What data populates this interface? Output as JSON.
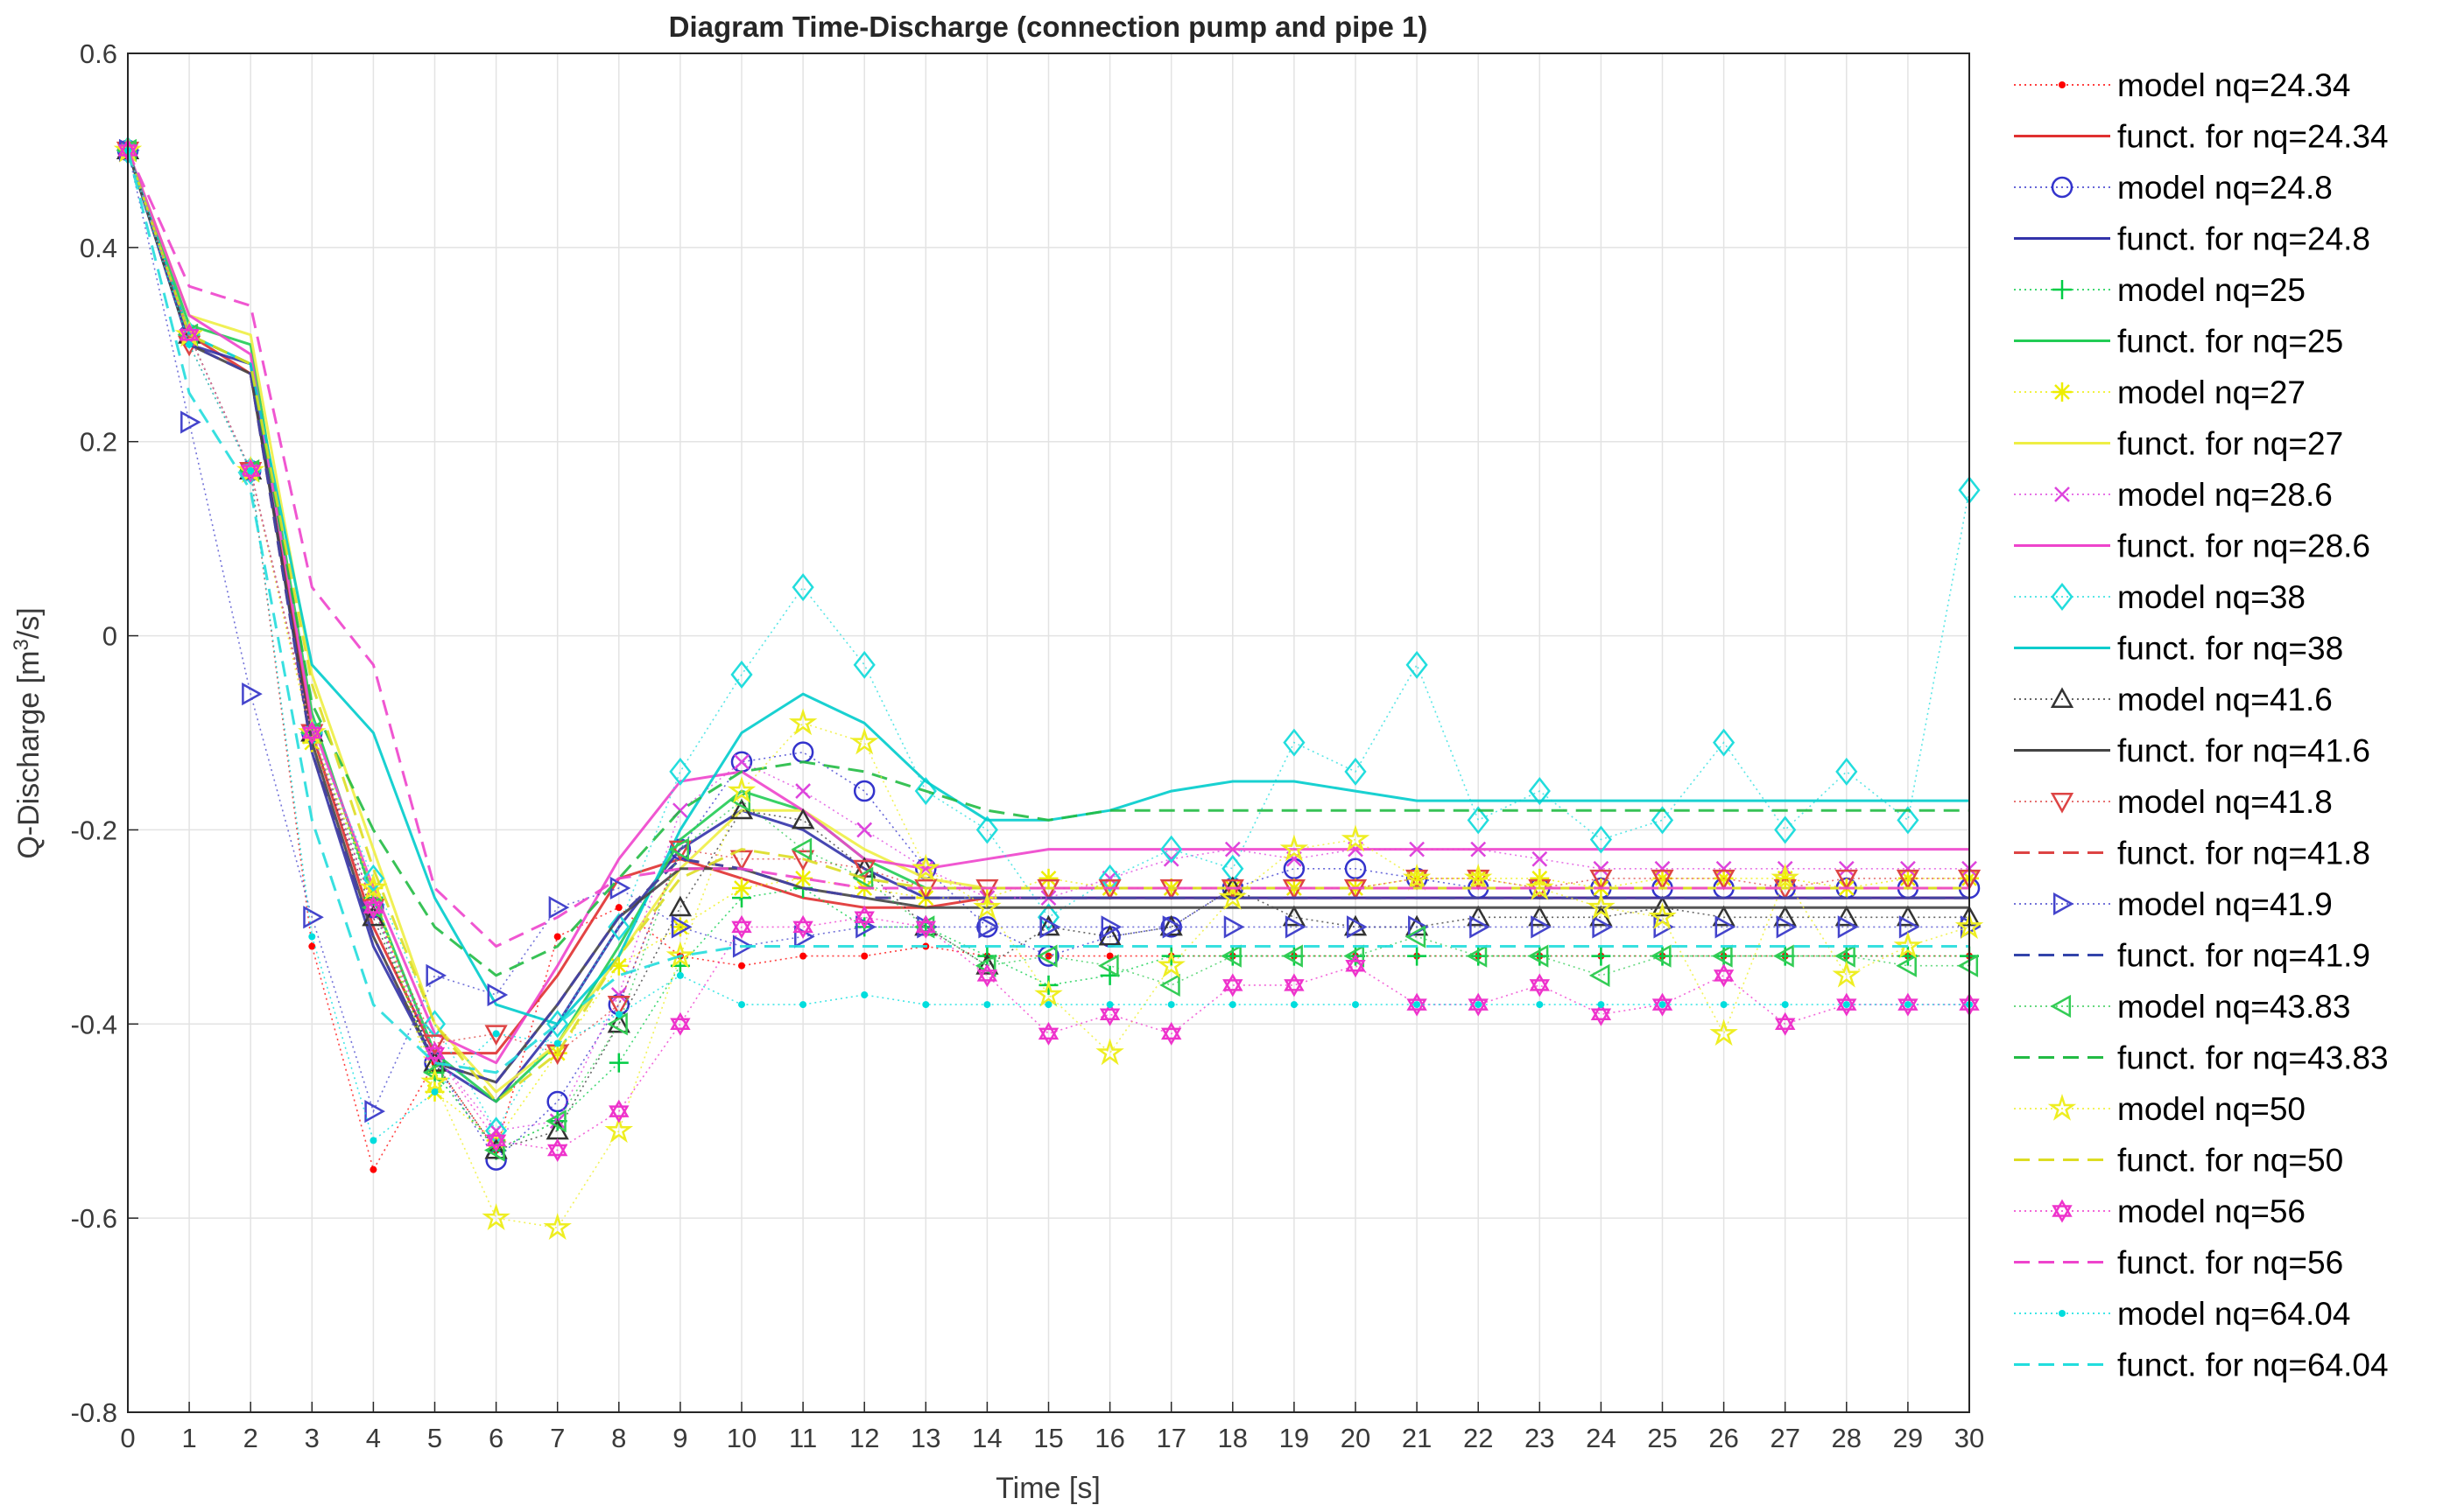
{
  "chart_data": {
    "type": "line",
    "title": "Diagram Time-Discharge (connection pump and pipe 1)",
    "xlabel": "Time [s]",
    "ylabel_main": "Q-Discharge [m",
    "ylabel_sup": "3",
    "ylabel_tail": "/s]",
    "xlim": [
      0,
      30
    ],
    "ylim": [
      -0.8,
      0.6
    ],
    "xticks": [
      0,
      1,
      2,
      3,
      4,
      5,
      6,
      7,
      8,
      9,
      10,
      11,
      12,
      13,
      14,
      15,
      16,
      17,
      18,
      19,
      20,
      21,
      22,
      23,
      24,
      25,
      26,
      27,
      28,
      29,
      30
    ],
    "yticks": [
      -0.8,
      -0.6,
      -0.4,
      -0.2,
      0,
      0.2,
      0.4,
      0.6
    ],
    "xtick_labels": [
      "0",
      "1",
      "2",
      "3",
      "4",
      "5",
      "6",
      "7",
      "8",
      "9",
      "10",
      "11",
      "12",
      "13",
      "14",
      "15",
      "16",
      "17",
      "18",
      "19",
      "20",
      "21",
      "22",
      "23",
      "24",
      "25",
      "26",
      "27",
      "28",
      "29",
      "30"
    ],
    "ytick_labels": [
      "-0.8",
      "-0.6",
      "-0.4",
      "-0.2",
      "0",
      "0.2",
      "0.4",
      "0.6"
    ],
    "grid": true,
    "legend_position": "outside-right",
    "x": [
      0,
      1,
      2,
      3,
      4,
      5,
      6,
      7,
      8,
      9,
      10,
      11,
      12,
      13,
      14,
      15,
      16,
      17,
      18,
      19,
      20,
      21,
      22,
      23,
      24,
      25,
      26,
      27,
      28,
      29,
      30
    ],
    "series": [
      {
        "name": "model nq=24.34",
        "kind": "model",
        "marker": "point",
        "color": "#ff0000",
        "values": [
          0.5,
          0.31,
          0.17,
          -0.32,
          -0.55,
          -0.44,
          -0.53,
          -0.31,
          -0.28,
          -0.33,
          -0.34,
          -0.33,
          -0.33,
          -0.32,
          -0.33,
          -0.33,
          -0.33,
          -0.33,
          -0.33,
          -0.33,
          -0.33,
          -0.33,
          -0.33,
          -0.33,
          -0.33,
          -0.33,
          -0.33,
          -0.33,
          -0.33,
          -0.33,
          -0.33
        ]
      },
      {
        "name": "funct. for nq=24.34",
        "kind": "fit",
        "dash": "solid",
        "color": "#e03030",
        "values": [
          0.5,
          0.31,
          0.27,
          -0.1,
          -0.3,
          -0.43,
          -0.43,
          -0.35,
          -0.25,
          -0.23,
          -0.25,
          -0.27,
          -0.28,
          -0.28,
          -0.27,
          -0.27,
          -0.27,
          -0.27,
          -0.27,
          -0.27,
          -0.27,
          -0.27,
          -0.27,
          -0.27,
          -0.27,
          -0.27,
          -0.27,
          -0.27,
          -0.27,
          -0.27,
          -0.27
        ]
      },
      {
        "name": "model nq=24.8",
        "kind": "model",
        "marker": "circle",
        "color": "#3333cc",
        "values": [
          0.5,
          0.31,
          0.17,
          -0.1,
          -0.28,
          -0.44,
          -0.54,
          -0.48,
          -0.38,
          -0.22,
          -0.13,
          -0.12,
          -0.16,
          -0.24,
          -0.3,
          -0.33,
          -0.31,
          -0.3,
          -0.26,
          -0.24,
          -0.24,
          -0.25,
          -0.26,
          -0.26,
          -0.26,
          -0.26,
          -0.26,
          -0.26,
          -0.26,
          -0.26,
          -0.26
        ]
      },
      {
        "name": "funct. for nq=24.8",
        "kind": "fit",
        "dash": "solid",
        "color": "#3333aa",
        "values": [
          0.5,
          0.3,
          0.28,
          -0.12,
          -0.32,
          -0.44,
          -0.48,
          -0.4,
          -0.3,
          -0.22,
          -0.18,
          -0.2,
          -0.24,
          -0.27,
          -0.27,
          -0.27,
          -0.27,
          -0.27,
          -0.27,
          -0.27,
          -0.27,
          -0.27,
          -0.27,
          -0.27,
          -0.27,
          -0.27,
          -0.27,
          -0.27,
          -0.27,
          -0.27,
          -0.27
        ]
      },
      {
        "name": "model nq=25",
        "kind": "model",
        "marker": "plus",
        "color": "#00cc44",
        "values": [
          0.5,
          0.31,
          0.17,
          -0.1,
          -0.27,
          -0.45,
          -0.53,
          -0.5,
          -0.44,
          -0.34,
          -0.27,
          -0.26,
          -0.3,
          -0.3,
          -0.33,
          -0.36,
          -0.35,
          -0.33,
          -0.33,
          -0.33,
          -0.33,
          -0.33,
          -0.33,
          -0.33,
          -0.33,
          -0.33,
          -0.33,
          -0.33,
          -0.33,
          -0.33,
          -0.33
        ]
      },
      {
        "name": "funct. for nq=25",
        "kind": "fit",
        "dash": "solid",
        "color": "#22cc55",
        "values": [
          0.5,
          0.32,
          0.3,
          -0.08,
          -0.27,
          -0.43,
          -0.48,
          -0.42,
          -0.32,
          -0.21,
          -0.16,
          -0.18,
          -0.23,
          -0.26,
          -0.26,
          -0.26,
          -0.26,
          -0.26,
          -0.26,
          -0.26,
          -0.26,
          -0.26,
          -0.26,
          -0.26,
          -0.26,
          -0.26,
          -0.26,
          -0.26,
          -0.26,
          -0.26,
          -0.26
        ]
      },
      {
        "name": "model nq=27",
        "kind": "model",
        "marker": "asterisk",
        "color": "#eeee00",
        "values": [
          0.5,
          0.31,
          0.17,
          -0.11,
          -0.26,
          -0.47,
          -0.52,
          -0.43,
          -0.34,
          -0.3,
          -0.26,
          -0.25,
          -0.26,
          -0.27,
          -0.27,
          -0.25,
          -0.26,
          -0.26,
          -0.26,
          -0.26,
          -0.26,
          -0.25,
          -0.25,
          -0.25,
          -0.26,
          -0.25,
          -0.25,
          -0.25,
          -0.26,
          -0.25,
          -0.25
        ]
      },
      {
        "name": "funct. for nq=27",
        "kind": "fit",
        "dash": "solid",
        "color": "#eeee44",
        "values": [
          0.5,
          0.33,
          0.31,
          -0.04,
          -0.22,
          -0.4,
          -0.47,
          -0.42,
          -0.33,
          -0.24,
          -0.18,
          -0.18,
          -0.22,
          -0.25,
          -0.26,
          -0.26,
          -0.26,
          -0.26,
          -0.26,
          -0.26,
          -0.26,
          -0.26,
          -0.26,
          -0.26,
          -0.26,
          -0.26,
          -0.26,
          -0.26,
          -0.26,
          -0.26,
          -0.26
        ]
      },
      {
        "name": "model nq=28.6",
        "kind": "model",
        "marker": "cross",
        "color": "#dd44dd",
        "values": [
          0.5,
          0.31,
          0.17,
          -0.1,
          -0.28,
          -0.43,
          -0.51,
          -0.5,
          -0.37,
          -0.18,
          -0.13,
          -0.16,
          -0.2,
          -0.24,
          -0.27,
          -0.27,
          -0.25,
          -0.23,
          -0.22,
          -0.23,
          -0.22,
          -0.22,
          -0.22,
          -0.23,
          -0.24,
          -0.24,
          -0.24,
          -0.24,
          -0.24,
          -0.24,
          -0.24
        ]
      },
      {
        "name": "funct. for nq=28.6",
        "kind": "fit",
        "dash": "solid",
        "color": "#ee44cc",
        "values": [
          0.5,
          0.33,
          0.29,
          -0.09,
          -0.26,
          -0.41,
          -0.44,
          -0.34,
          -0.23,
          -0.15,
          -0.14,
          -0.18,
          -0.23,
          -0.24,
          -0.23,
          -0.22,
          -0.22,
          -0.22,
          -0.22,
          -0.22,
          -0.22,
          -0.22,
          -0.22,
          -0.22,
          -0.22,
          -0.22,
          -0.22,
          -0.22,
          -0.22,
          -0.22,
          -0.22
        ]
      },
      {
        "name": "model nq=38",
        "kind": "model",
        "marker": "diamond",
        "color": "#22dddd",
        "values": [
          0.5,
          0.31,
          0.17,
          -0.1,
          -0.25,
          -0.4,
          -0.51,
          -0.4,
          -0.3,
          -0.14,
          -0.04,
          0.05,
          -0.03,
          -0.16,
          -0.2,
          -0.29,
          -0.25,
          -0.22,
          -0.24,
          -0.11,
          -0.14,
          -0.03,
          -0.19,
          -0.16,
          -0.21,
          -0.19,
          -0.11,
          -0.2,
          -0.14,
          -0.19,
          0.15
        ]
      },
      {
        "name": "funct. for nq=38",
        "kind": "fit",
        "dash": "solid",
        "color": "#00cccc",
        "values": [
          0.5,
          0.31,
          0.28,
          -0.03,
          -0.1,
          -0.27,
          -0.38,
          -0.4,
          -0.33,
          -0.2,
          -0.1,
          -0.06,
          -0.09,
          -0.15,
          -0.19,
          -0.19,
          -0.18,
          -0.16,
          -0.15,
          -0.15,
          -0.16,
          -0.17,
          -0.17,
          -0.17,
          -0.17,
          -0.17,
          -0.17,
          -0.17,
          -0.17,
          -0.17,
          -0.17
        ]
      },
      {
        "name": "model nq=41.6",
        "kind": "model",
        "marker": "triangle-up",
        "color": "#333333",
        "values": [
          0.5,
          0.31,
          0.17,
          -0.1,
          -0.29,
          -0.44,
          -0.53,
          -0.51,
          -0.4,
          -0.28,
          -0.18,
          -0.19,
          -0.24,
          -0.3,
          -0.34,
          -0.3,
          -0.31,
          -0.3,
          -0.26,
          -0.29,
          -0.3,
          -0.3,
          -0.29,
          -0.29,
          -0.29,
          -0.28,
          -0.29,
          -0.29,
          -0.29,
          -0.29,
          -0.29
        ]
      },
      {
        "name": "funct. for nq=41.6",
        "kind": "fit",
        "dash": "solid",
        "color": "#444444",
        "values": [
          0.5,
          0.3,
          0.27,
          -0.11,
          -0.31,
          -0.44,
          -0.46,
          -0.38,
          -0.29,
          -0.24,
          -0.24,
          -0.26,
          -0.27,
          -0.28,
          -0.28,
          -0.28,
          -0.28,
          -0.28,
          -0.28,
          -0.28,
          -0.28,
          -0.28,
          -0.28,
          -0.28,
          -0.28,
          -0.28,
          -0.28,
          -0.28,
          -0.28,
          -0.28,
          -0.28
        ]
      },
      {
        "name": "model nq=41.8",
        "kind": "model",
        "marker": "triangle-down",
        "color": "#dd4444",
        "values": [
          0.5,
          0.3,
          0.17,
          -0.1,
          -0.28,
          -0.42,
          -0.41,
          -0.43,
          -0.38,
          -0.22,
          -0.23,
          -0.23,
          -0.24,
          -0.26,
          -0.26,
          -0.26,
          -0.26,
          -0.26,
          -0.26,
          -0.26,
          -0.26,
          -0.25,
          -0.25,
          -0.26,
          -0.25,
          -0.25,
          -0.25,
          -0.26,
          -0.25,
          -0.25,
          -0.25
        ]
      },
      {
        "name": "funct. for nq=41.8",
        "kind": "fit",
        "dash": "dash",
        "color": "#dd4444",
        "values": [
          0.5,
          0.3,
          0.27,
          -0.12,
          -0.31,
          -0.44,
          -0.46,
          -0.38,
          -0.29,
          -0.23,
          -0.24,
          -0.26,
          -0.27,
          -0.27,
          -0.27,
          -0.27,
          -0.27,
          -0.27,
          -0.27,
          -0.27,
          -0.27,
          -0.27,
          -0.27,
          -0.27,
          -0.27,
          -0.27,
          -0.27,
          -0.27,
          -0.27,
          -0.27,
          -0.27
        ]
      },
      {
        "name": "model nq=41.9",
        "kind": "model",
        "marker": "triangle-right",
        "color": "#4444cc",
        "values": [
          0.5,
          0.22,
          -0.06,
          -0.29,
          -0.49,
          -0.35,
          -0.37,
          -0.28,
          -0.26,
          -0.3,
          -0.32,
          -0.31,
          -0.3,
          -0.3,
          -0.3,
          -0.3,
          -0.3,
          -0.3,
          -0.3,
          -0.3,
          -0.3,
          -0.3,
          -0.3,
          -0.3,
          -0.3,
          -0.3,
          -0.3,
          -0.3,
          -0.3,
          -0.3,
          -0.3
        ]
      },
      {
        "name": "funct. for nq=41.9",
        "kind": "fit",
        "dash": "dash",
        "color": "#3344aa",
        "values": [
          0.5,
          0.3,
          0.27,
          -0.12,
          -0.31,
          -0.44,
          -0.46,
          -0.38,
          -0.29,
          -0.23,
          -0.24,
          -0.26,
          -0.27,
          -0.27,
          -0.27,
          -0.27,
          -0.27,
          -0.27,
          -0.27,
          -0.27,
          -0.27,
          -0.27,
          -0.27,
          -0.27,
          -0.27,
          -0.27,
          -0.27,
          -0.27,
          -0.27,
          -0.27,
          -0.27
        ]
      },
      {
        "name": "model nq=43.83",
        "kind": "model",
        "marker": "triangle-left",
        "color": "#33cc55",
        "values": [
          0.5,
          0.31,
          0.17,
          -0.1,
          -0.28,
          -0.45,
          -0.53,
          -0.5,
          -0.4,
          -0.22,
          -0.17,
          -0.22,
          -0.25,
          -0.3,
          -0.34,
          -0.33,
          -0.34,
          -0.36,
          -0.33,
          -0.33,
          -0.33,
          -0.31,
          -0.33,
          -0.33,
          -0.35,
          -0.33,
          -0.33,
          -0.33,
          -0.33,
          -0.34,
          -0.34
        ]
      },
      {
        "name": "funct. for nq=43.83",
        "kind": "fit",
        "dash": "dash",
        "color": "#22bb44",
        "values": [
          0.5,
          0.31,
          0.28,
          -0.07,
          -0.2,
          -0.3,
          -0.35,
          -0.32,
          -0.25,
          -0.18,
          -0.14,
          -0.13,
          -0.14,
          -0.16,
          -0.18,
          -0.19,
          -0.18,
          -0.18,
          -0.18,
          -0.18,
          -0.18,
          -0.18,
          -0.18,
          -0.18,
          -0.18,
          -0.18,
          -0.18,
          -0.18,
          -0.18,
          -0.18,
          -0.18
        ]
      },
      {
        "name": "model nq=50",
        "kind": "model",
        "marker": "star",
        "color": "#eeee22",
        "values": [
          0.5,
          0.31,
          0.17,
          -0.1,
          -0.26,
          -0.46,
          -0.6,
          -0.61,
          -0.51,
          -0.33,
          -0.16,
          -0.09,
          -0.11,
          -0.24,
          -0.28,
          -0.37,
          -0.43,
          -0.34,
          -0.27,
          -0.22,
          -0.21,
          -0.25,
          -0.25,
          -0.26,
          -0.28,
          -0.29,
          -0.41,
          -0.25,
          -0.35,
          -0.32,
          -0.3
        ]
      },
      {
        "name": "funct. for nq=50",
        "kind": "fit",
        "dash": "dash",
        "color": "#dddd22",
        "values": [
          0.5,
          0.31,
          0.28,
          -0.05,
          -0.24,
          -0.4,
          -0.48,
          -0.43,
          -0.33,
          -0.25,
          -0.22,
          -0.23,
          -0.25,
          -0.26,
          -0.26,
          -0.26,
          -0.26,
          -0.26,
          -0.26,
          -0.26,
          -0.26,
          -0.26,
          -0.26,
          -0.26,
          -0.26,
          -0.26,
          -0.26,
          -0.26,
          -0.26,
          -0.26,
          -0.26
        ]
      },
      {
        "name": "model nq=56",
        "kind": "model",
        "marker": "hexagram",
        "color": "#ee33cc",
        "values": [
          0.5,
          0.31,
          0.17,
          -0.1,
          -0.28,
          -0.43,
          -0.52,
          -0.53,
          -0.49,
          -0.4,
          -0.3,
          -0.3,
          -0.29,
          -0.3,
          -0.35,
          -0.41,
          -0.39,
          -0.41,
          -0.36,
          -0.36,
          -0.34,
          -0.38,
          -0.38,
          -0.36,
          -0.39,
          -0.38,
          -0.35,
          -0.4,
          -0.38,
          -0.38,
          -0.38
        ]
      },
      {
        "name": "funct. for nq=56",
        "kind": "fit",
        "dash": "dash",
        "color": "#ee44cc",
        "values": [
          0.5,
          0.36,
          0.34,
          0.05,
          -0.03,
          -0.26,
          -0.32,
          -0.29,
          -0.25,
          -0.24,
          -0.24,
          -0.25,
          -0.26,
          -0.26,
          -0.26,
          -0.26,
          -0.26,
          -0.26,
          -0.26,
          -0.26,
          -0.26,
          -0.26,
          -0.26,
          -0.26,
          -0.26,
          -0.26,
          -0.26,
          -0.26,
          -0.26,
          -0.26,
          -0.26
        ]
      },
      {
        "name": "model nq=64.04",
        "kind": "model",
        "marker": "point",
        "color": "#00dddd",
        "values": [
          0.5,
          0.3,
          0.17,
          -0.31,
          -0.52,
          -0.47,
          -0.41,
          -0.42,
          -0.39,
          -0.35,
          -0.38,
          -0.38,
          -0.37,
          -0.38,
          -0.38,
          -0.38,
          -0.38,
          -0.38,
          -0.38,
          -0.38,
          -0.38,
          -0.38,
          -0.38,
          -0.38,
          -0.38,
          -0.38,
          -0.38,
          -0.38,
          -0.38,
          -0.38,
          -0.38
        ]
      },
      {
        "name": "funct. for nq=64.04",
        "kind": "fit",
        "dash": "dash",
        "color": "#22dddd",
        "values": [
          0.5,
          0.25,
          0.15,
          -0.19,
          -0.38,
          -0.44,
          -0.45,
          -0.4,
          -0.35,
          -0.33,
          -0.32,
          -0.32,
          -0.32,
          -0.32,
          -0.32,
          -0.32,
          -0.32,
          -0.32,
          -0.32,
          -0.32,
          -0.32,
          -0.32,
          -0.32,
          -0.32,
          -0.32,
          -0.32,
          -0.32,
          -0.32,
          -0.32,
          -0.32,
          -0.32
        ]
      }
    ]
  }
}
